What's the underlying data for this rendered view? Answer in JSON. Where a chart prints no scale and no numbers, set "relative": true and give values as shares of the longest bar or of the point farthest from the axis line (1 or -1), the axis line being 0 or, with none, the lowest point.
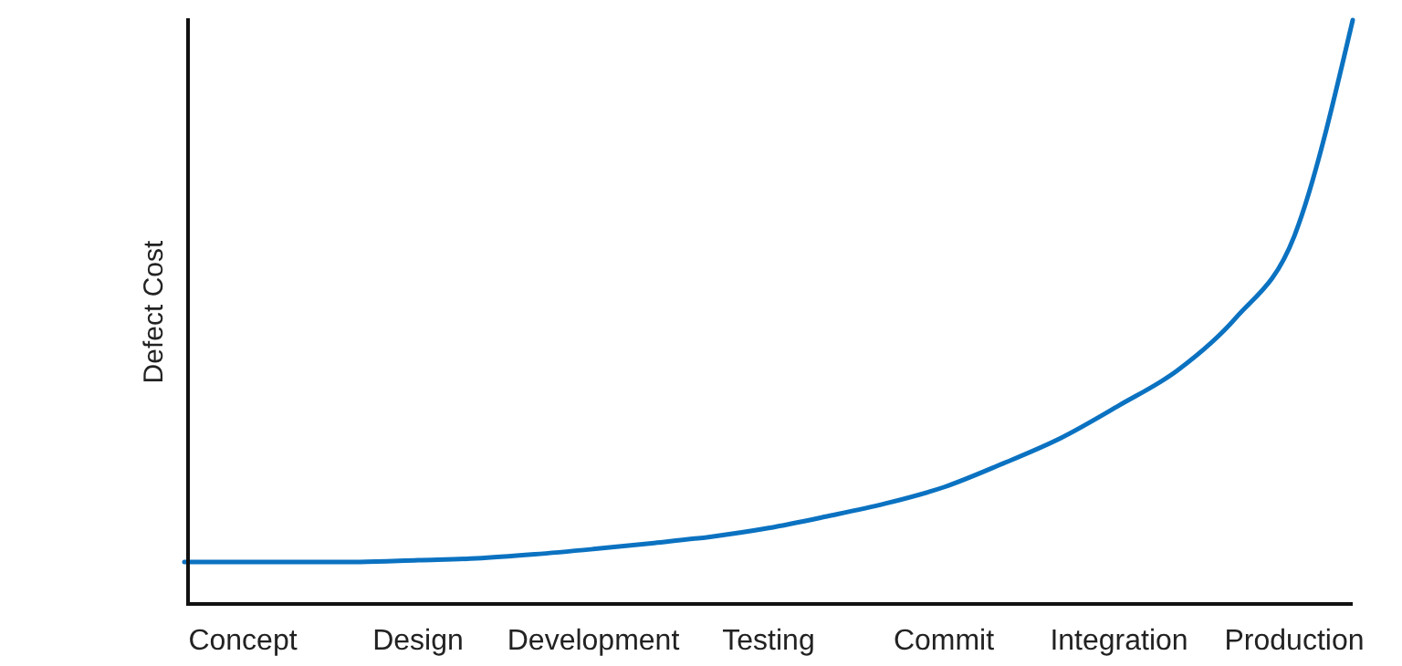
{
  "chart_data": {
    "type": "line",
    "ylabel": "Defect Cost",
    "relative": true,
    "grid": false,
    "marker": "none",
    "line_style": "solid",
    "categories": [
      null,
      "Concept",
      null,
      null,
      "Design",
      null,
      null,
      "Development",
      null,
      null,
      "Testing",
      null,
      null,
      "Commit",
      null,
      null,
      "Integration",
      null,
      null,
      "Production",
      null
    ],
    "series": [
      {
        "color": "#0b72c1",
        "values": [
          0.072,
          0.072,
          0.072,
          0.072,
          0.075,
          0.078,
          0.085,
          0.094,
          0.104,
          0.115,
          0.13,
          0.15,
          0.172,
          0.2,
          0.24,
          0.284,
          0.34,
          0.4,
          0.49,
          0.63,
          1.0
        ]
      }
    ]
  }
}
